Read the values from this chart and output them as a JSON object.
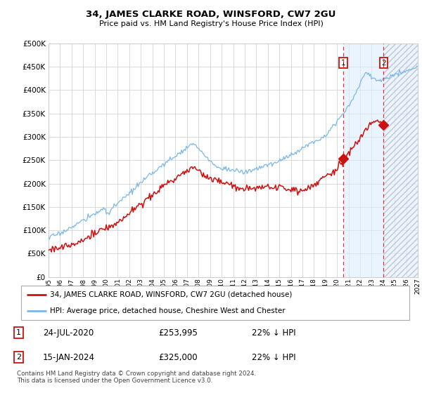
{
  "title": "34, JAMES CLARKE ROAD, WINSFORD, CW7 2GU",
  "subtitle": "Price paid vs. HM Land Registry's House Price Index (HPI)",
  "ytick_values": [
    0,
    50000,
    100000,
    150000,
    200000,
    250000,
    300000,
    350000,
    400000,
    450000,
    500000
  ],
  "ylim": [
    0,
    500000
  ],
  "xlim_start": 1995,
  "xlim_end": 2027,
  "xticks": [
    1995,
    1996,
    1997,
    1998,
    1999,
    2000,
    2001,
    2002,
    2003,
    2004,
    2005,
    2006,
    2007,
    2008,
    2009,
    2010,
    2011,
    2012,
    2013,
    2014,
    2015,
    2016,
    2017,
    2018,
    2019,
    2020,
    2021,
    2022,
    2023,
    2024,
    2025,
    2026,
    2027
  ],
  "hpi_color": "#7ab8e8",
  "price_color": "#cc1111",
  "marker1_date": 2020.55,
  "marker1_price": 253995,
  "marker2_date": 2024.04,
  "marker2_price": 325000,
  "vline_color": "#dd3333",
  "shade_start": 2020.55,
  "shade_end": 2024.04,
  "hatch_start": 2024.04,
  "legend_line1": "34, JAMES CLARKE ROAD, WINSFORD, CW7 2GU (detached house)",
  "legend_line2": "HPI: Average price, detached house, Cheshire West and Chester",
  "table_row1": [
    "1",
    "24-JUL-2020",
    "£253,995",
    "22% ↓ HPI"
  ],
  "table_row2": [
    "2",
    "15-JAN-2024",
    "£325,000",
    "22% ↓ HPI"
  ],
  "footer": "Contains HM Land Registry data © Crown copyright and database right 2024.\nThis data is licensed under the Open Government Licence v3.0.",
  "background_color": "#ffffff",
  "grid_color": "#cccccc"
}
